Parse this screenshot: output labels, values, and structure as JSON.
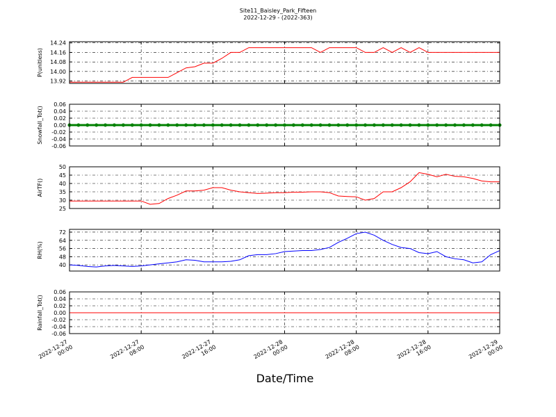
{
  "chart_data": {
    "type": "line",
    "title": "Site11_Baisley_Park_Fifteen",
    "subtitle": "2022-12-29 - (2022-363)",
    "xlabel": "Date/Time",
    "grid": true,
    "x": [
      "2022-12-27 00:00",
      "2022-12-27 01:00",
      "2022-12-27 02:00",
      "2022-12-27 03:00",
      "2022-12-27 04:00",
      "2022-12-27 05:00",
      "2022-12-27 06:00",
      "2022-12-27 07:00",
      "2022-12-27 08:00",
      "2022-12-27 09:00",
      "2022-12-27 10:00",
      "2022-12-27 11:00",
      "2022-12-27 12:00",
      "2022-12-27 13:00",
      "2022-12-27 14:00",
      "2022-12-27 15:00",
      "2022-12-27 16:00",
      "2022-12-27 17:00",
      "2022-12-27 18:00",
      "2022-12-27 19:00",
      "2022-12-27 20:00",
      "2022-12-27 21:00",
      "2022-12-27 22:00",
      "2022-12-27 23:00",
      "2022-12-28 00:00",
      "2022-12-28 01:00",
      "2022-12-28 02:00",
      "2022-12-28 03:00",
      "2022-12-28 04:00",
      "2022-12-28 05:00",
      "2022-12-28 06:00",
      "2022-12-28 07:00",
      "2022-12-28 08:00",
      "2022-12-28 09:00",
      "2022-12-28 10:00",
      "2022-12-28 11:00",
      "2022-12-28 12:00",
      "2022-12-28 13:00",
      "2022-12-28 14:00",
      "2022-12-28 15:00",
      "2022-12-28 16:00",
      "2022-12-28 17:00",
      "2022-12-28 18:00",
      "2022-12-28 19:00",
      "2022-12-28 20:00",
      "2022-12-28 21:00",
      "2022-12-28 22:00",
      "2022-12-28 23:00",
      "2022-12-29 00:00"
    ],
    "xlim": [
      "2022-12-27 00:00",
      "2022-12-29 00:00"
    ],
    "xticks": [
      "2022-12-27 00:00",
      "2022-12-27 08:00",
      "2022-12-27 16:00",
      "2022-12-28 00:00",
      "2022-12-28 08:00",
      "2022-12-28 16:00",
      "2022-12-29 00:00"
    ],
    "panels": [
      {
        "ylabel": "P(unitless)",
        "ylim": [
          13.9,
          14.25
        ],
        "yticks": [
          13.92,
          {
            "value": 14.0,
            "label": "14.00"
          },
          14.08,
          14.16,
          14.24
        ],
        "series": [
          {
            "color": "#ff0000",
            "values": [
              13.91,
              13.91,
              13.91,
              13.91,
              13.91,
              13.91,
              13.91,
              13.95,
              13.95,
              13.95,
              13.95,
              13.95,
              13.99,
              14.03,
              14.04,
              14.07,
              14.07,
              14.11,
              14.16,
              14.16,
              14.2,
              14.2,
              14.2,
              14.2,
              14.2,
              14.2,
              14.2,
              14.2,
              14.16,
              14.2,
              14.2,
              14.2,
              14.2,
              14.16,
              14.16,
              14.2,
              14.16,
              14.2,
              14.16,
              14.2,
              14.16,
              14.16,
              14.16,
              14.16,
              14.16,
              14.16,
              14.16,
              14.16,
              14.16
            ]
          }
        ]
      },
      {
        "ylabel": "Snowfall_Tot()",
        "ylim": [
          -0.06,
          0.06
        ],
        "yticks": [
          -0.06,
          -0.04,
          -0.02,
          {
            "value": 0,
            "label": "0.00"
          },
          0.02,
          0.04,
          0.06
        ],
        "series": [
          {
            "color": "#008000",
            "marker": "o",
            "values": [
              0,
              0,
              0,
              0,
              0,
              0,
              0,
              0,
              0,
              0,
              0,
              0,
              0,
              0,
              0,
              0,
              0,
              0,
              0,
              0,
              0,
              0,
              0,
              0,
              0,
              0,
              0,
              0,
              0,
              0,
              0,
              0,
              0,
              0,
              0,
              0,
              0,
              0,
              0,
              0,
              0,
              0,
              0,
              0,
              0,
              0,
              0,
              0,
              0
            ]
          }
        ]
      },
      {
        "ylabel": "AirTF()",
        "ylim": [
          25,
          50
        ],
        "yticks": [
          25,
          30,
          35,
          40,
          45,
          50
        ],
        "series": [
          {
            "color": "#ff0000",
            "values": [
              29.5,
              29.5,
              29.5,
              29.5,
              29.5,
              29.5,
              29.5,
              29.5,
              29.5,
              27.5,
              28,
              31,
              33,
              35.5,
              35.5,
              36,
              37.5,
              37.5,
              36,
              35,
              34.5,
              34,
              34.2,
              34.5,
              34.5,
              34.8,
              34.8,
              35,
              35,
              34.5,
              32.5,
              32.2,
              32,
              30,
              31,
              35,
              35,
              37.5,
              41,
              46.5,
              45.5,
              44,
              45.5,
              44.3,
              44,
              43,
              41.5,
              41,
              41
            ]
          }
        ]
      },
      {
        "ylabel": "RH(%)",
        "ylim": [
          34,
          74.7
        ],
        "yticks": [
          40,
          48,
          56,
          64,
          72
        ],
        "series": [
          {
            "color": "#0000ff",
            "values": [
              40,
              39.5,
              38.5,
              38,
              39,
              39.5,
              39,
              38.5,
              39,
              40,
              41,
              42,
              43,
              45,
              44.5,
              43,
              43,
              43,
              43.5,
              45,
              49,
              50,
              50,
              51,
              53,
              53.5,
              54,
              54,
              55,
              57,
              62,
              66,
              70.5,
              72,
              69,
              64,
              60,
              57,
              56,
              52,
              51,
              53,
              48,
              46,
              45,
              42,
              43,
              50,
              54
            ]
          }
        ]
      },
      {
        "ylabel": "Rainfall_Tot()",
        "ylim": [
          -0.06,
          0.06
        ],
        "yticks": [
          -0.06,
          -0.04,
          -0.02,
          {
            "value": 0,
            "label": "0.00"
          },
          0.02,
          0.04,
          0.06
        ],
        "series": [
          {
            "color": "#ff0000",
            "values": [
              0,
              0,
              0,
              0,
              0,
              0,
              0,
              0,
              0,
              0,
              0,
              0,
              0,
              0,
              0,
              0,
              0,
              0,
              0,
              0,
              0,
              0,
              0,
              0,
              0,
              0,
              0,
              0,
              0,
              0,
              0,
              0,
              0,
              0,
              0,
              0,
              0,
              0,
              0,
              0,
              0,
              0,
              0,
              0,
              0,
              0,
              0,
              0,
              0
            ]
          }
        ]
      }
    ]
  }
}
